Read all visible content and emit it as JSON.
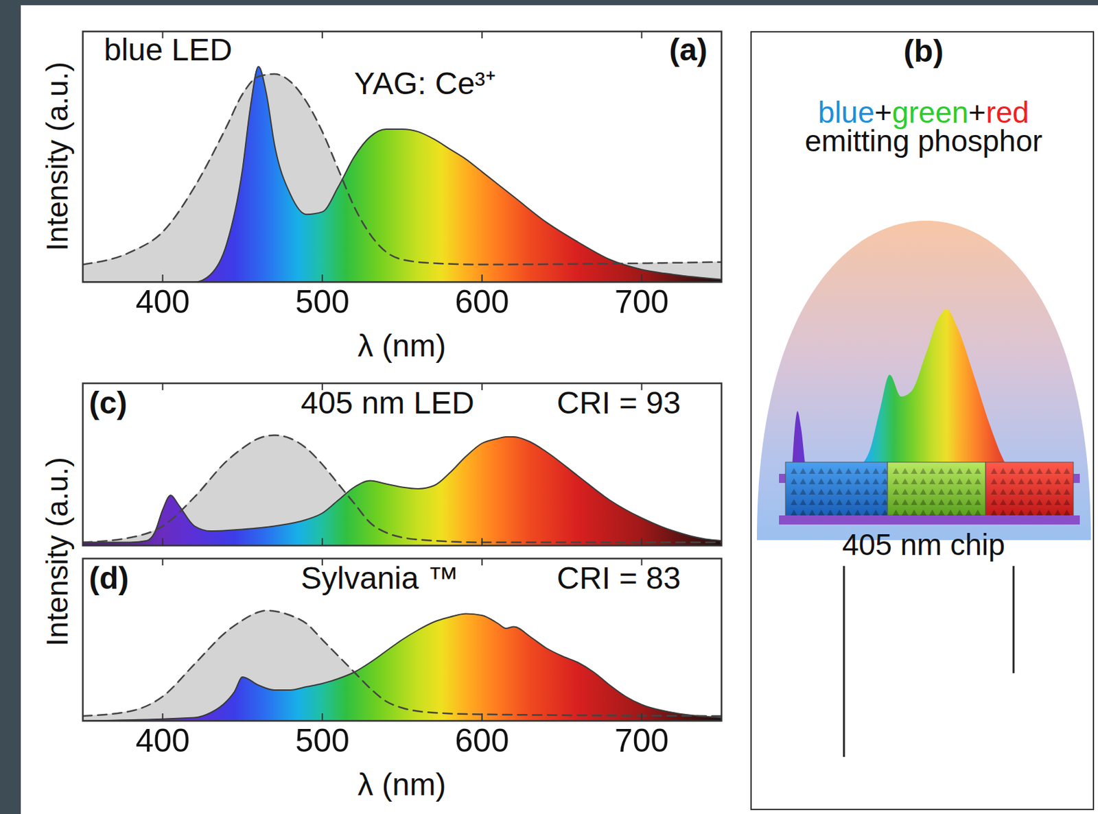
{
  "chart_data": [
    {
      "type": "area",
      "panel": "(a)",
      "annotations": [
        "blue LED",
        "YAG: Ce³⁺"
      ],
      "xlabel": "λ (nm)",
      "ylabel": "Intensity (a.u.)",
      "xlim": [
        350,
        750
      ],
      "xticks": [
        400,
        500,
        600,
        700
      ],
      "ylim": [
        0,
        1
      ],
      "tick_labels": "x",
      "series": [
        {
          "color": "#d4d4d4",
          "line_style": "dashed",
          "x": [
            350,
            380,
            400,
            420,
            440,
            450,
            460,
            470,
            480,
            490,
            500,
            510,
            520,
            530,
            540,
            550,
            570,
            600,
            700,
            750
          ],
          "values": [
            0.07,
            0.12,
            0.2,
            0.38,
            0.62,
            0.75,
            0.82,
            0.83,
            0.8,
            0.72,
            0.6,
            0.45,
            0.3,
            0.19,
            0.12,
            0.09,
            0.075,
            0.07,
            0.075,
            0.08
          ]
        },
        {
          "color": "spectrum",
          "line_style": "solid",
          "x": [
            350,
            420,
            430,
            440,
            450,
            455,
            460,
            465,
            470,
            480,
            490,
            500,
            510,
            520,
            530,
            540,
            550,
            560,
            570,
            580,
            590,
            600,
            620,
            640,
            660,
            680,
            700,
            720,
            750
          ],
          "values": [
            0,
            0,
            0.03,
            0.15,
            0.45,
            0.7,
            0.86,
            0.75,
            0.55,
            0.35,
            0.27,
            0.28,
            0.38,
            0.5,
            0.58,
            0.61,
            0.61,
            0.6,
            0.57,
            0.53,
            0.49,
            0.44,
            0.34,
            0.24,
            0.16,
            0.09,
            0.05,
            0.03,
            0.01
          ]
        }
      ]
    },
    {
      "type": "area",
      "panel": "(c)",
      "annotations": [
        "405 nm LED",
        "CRI = 93"
      ],
      "ylabel": "Intensity (a.u.)",
      "xlim": [
        350,
        750
      ],
      "xticks": [
        400,
        500,
        600,
        700
      ],
      "ylim": [
        0,
        1
      ],
      "tick_labels": false,
      "series": [
        {
          "color": "#d4d4d4",
          "line_style": "dashed",
          "x": [
            350,
            380,
            400,
            420,
            440,
            450,
            460,
            470,
            480,
            490,
            500,
            510,
            520,
            530,
            540,
            550,
            570,
            600,
            750
          ],
          "values": [
            0.02,
            0.05,
            0.12,
            0.3,
            0.52,
            0.6,
            0.66,
            0.68,
            0.66,
            0.6,
            0.5,
            0.38,
            0.26,
            0.14,
            0.08,
            0.05,
            0.03,
            0.02,
            0.02
          ]
        },
        {
          "color": "spectrum",
          "line_style": "solid",
          "x": [
            350,
            380,
            390,
            395,
            400,
            405,
            410,
            420,
            430,
            450,
            470,
            490,
            500,
            510,
            520,
            530,
            540,
            550,
            560,
            570,
            580,
            590,
            600,
            610,
            615,
            620,
            630,
            640,
            660,
            680,
            700,
            720,
            740,
            750
          ],
          "values": [
            0.02,
            0.02,
            0.03,
            0.08,
            0.22,
            0.31,
            0.25,
            0.12,
            0.09,
            0.1,
            0.12,
            0.16,
            0.2,
            0.28,
            0.36,
            0.4,
            0.38,
            0.36,
            0.35,
            0.37,
            0.45,
            0.55,
            0.63,
            0.66,
            0.67,
            0.67,
            0.64,
            0.58,
            0.43,
            0.28,
            0.17,
            0.09,
            0.04,
            0.03
          ]
        }
      ]
    },
    {
      "type": "area",
      "panel": "(d)",
      "annotations": [
        "Sylvania ™",
        "CRI = 83"
      ],
      "xlabel": "λ (nm)",
      "xlim": [
        350,
        750
      ],
      "xticks": [
        400,
        500,
        600,
        700
      ],
      "ylim": [
        0,
        1
      ],
      "tick_labels": "x",
      "series": [
        {
          "color": "#d4d4d4",
          "line_style": "dashed",
          "x": [
            350,
            380,
            400,
            420,
            440,
            450,
            460,
            465,
            480,
            490,
            500,
            510,
            520,
            530,
            540,
            550,
            570,
            600,
            750
          ],
          "values": [
            0.03,
            0.06,
            0.15,
            0.35,
            0.55,
            0.62,
            0.67,
            0.68,
            0.65,
            0.6,
            0.5,
            0.4,
            0.3,
            0.2,
            0.12,
            0.08,
            0.05,
            0.04,
            0.03
          ]
        },
        {
          "color": "spectrum",
          "line_style": "solid",
          "x": [
            350,
            420,
            430,
            440,
            445,
            450,
            460,
            470,
            480,
            490,
            500,
            510,
            520,
            530,
            540,
            550,
            560,
            570,
            580,
            590,
            600,
            610,
            615,
            620,
            630,
            640,
            650,
            660,
            670,
            680,
            690,
            700,
            720,
            750
          ],
          "values": [
            0,
            0.02,
            0.05,
            0.12,
            0.18,
            0.27,
            0.22,
            0.19,
            0.19,
            0.21,
            0.23,
            0.26,
            0.3,
            0.36,
            0.43,
            0.5,
            0.56,
            0.61,
            0.64,
            0.66,
            0.65,
            0.6,
            0.57,
            0.58,
            0.52,
            0.45,
            0.4,
            0.36,
            0.3,
            0.22,
            0.15,
            0.1,
            0.05,
            0.02
          ]
        }
      ]
    }
  ],
  "diagram": {
    "panel": "(b)",
    "title_parts": [
      {
        "text": "blue",
        "color": "#1e90d8"
      },
      {
        "text": "+"
      },
      {
        "text": "green",
        "color": "#2ecc2e"
      },
      {
        "text": "+"
      },
      {
        "text": "red",
        "color": "#ee2222"
      }
    ],
    "subtitle": "emitting phosphor",
    "chip_label": "405 nm chip",
    "spectrum": {
      "type": "area",
      "color": "spectrum",
      "x": [
        398,
        402,
        405,
        409,
        415,
        423,
        439,
        455,
        471,
        487,
        499,
        510,
        523,
        535,
        551,
        567,
        575,
        587,
        607,
        623,
        639,
        655,
        663
      ],
      "values": [
        0.05,
        0.35,
        0.44,
        0.35,
        0.12,
        0.06,
        0.07,
        0.09,
        0.12,
        0.22,
        0.45,
        0.64,
        0.52,
        0.55,
        0.75,
        0.96,
        1.0,
        0.9,
        0.62,
        0.38,
        0.18,
        0.06,
        0.02
      ]
    }
  }
}
